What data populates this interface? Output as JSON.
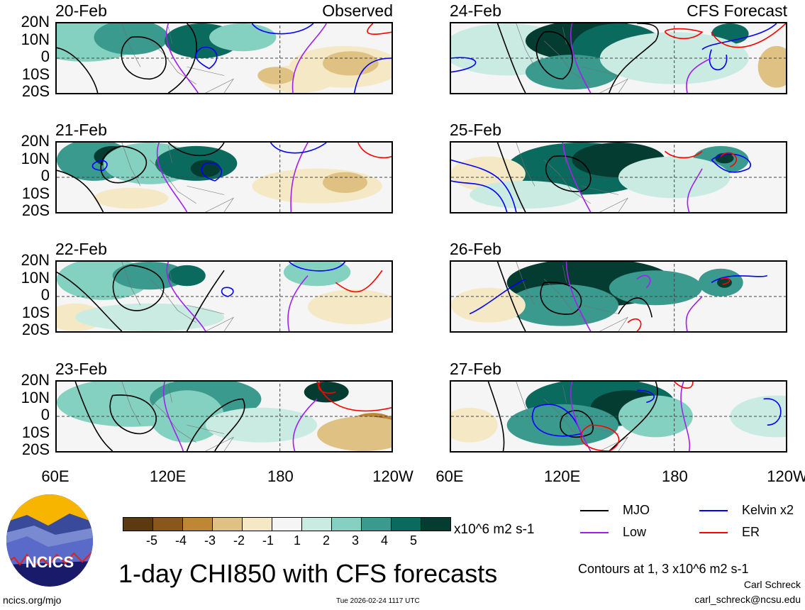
{
  "chart_data": {
    "type": "heatmap",
    "title": "1-day CHI850 with CFS forecasts",
    "xlabel": "",
    "ylabel": "",
    "x_ticks": [
      "60E",
      "120E",
      "180",
      "120W"
    ],
    "y_ticks": [
      "20N",
      "10N",
      "0",
      "10S",
      "20S"
    ],
    "xlim": [
      60,
      240
    ],
    "ylim": [
      -20,
      20
    ],
    "panels": [
      {
        "date": "20-Feb",
        "source": "Observed",
        "column": "left"
      },
      {
        "date": "21-Feb",
        "source": "",
        "column": "left"
      },
      {
        "date": "22-Feb",
        "source": "",
        "column": "left"
      },
      {
        "date": "23-Feb",
        "source": "",
        "column": "left"
      },
      {
        "date": "24-Feb",
        "source": "CFS Forecast",
        "column": "right"
      },
      {
        "date": "25-Feb",
        "source": "",
        "column": "right"
      },
      {
        "date": "26-Feb",
        "source": "",
        "column": "right"
      },
      {
        "date": "27-Feb",
        "source": "",
        "column": "right"
      }
    ],
    "colorbar": {
      "ticks": [
        "-5",
        "-4",
        "-3",
        "-2",
        "-1",
        "1",
        "2",
        "3",
        "4",
        "5"
      ],
      "colors": [
        "#5a3a0e",
        "#8a561a",
        "#bf8636",
        "#dfc283",
        "#f5e8c4",
        "#f5f5f5",
        "#c9ebe2",
        "#84d0c1",
        "#3a9a8e",
        "#0b6a5e",
        "#053c32"
      ],
      "units": "x10^6 m2 s-1"
    },
    "legend": [
      {
        "label": "MJO",
        "color": "#000000"
      },
      {
        "label": "Kelvin x2",
        "color": "#0000ff"
      },
      {
        "label": "Low",
        "color": "#a020f0"
      },
      {
        "label": "ER",
        "color": "#ff0000"
      }
    ],
    "contours_note": "Contours at 1, 3 x10^6 m2 s-1"
  },
  "footer": {
    "logo_text": "NCICS",
    "url": "ncics.org/mjo",
    "timestamp": "Tue 2026-02-24 1117 UTC",
    "author": "Carl Schreck",
    "email": "carl_schreck@ncsu.edu"
  }
}
